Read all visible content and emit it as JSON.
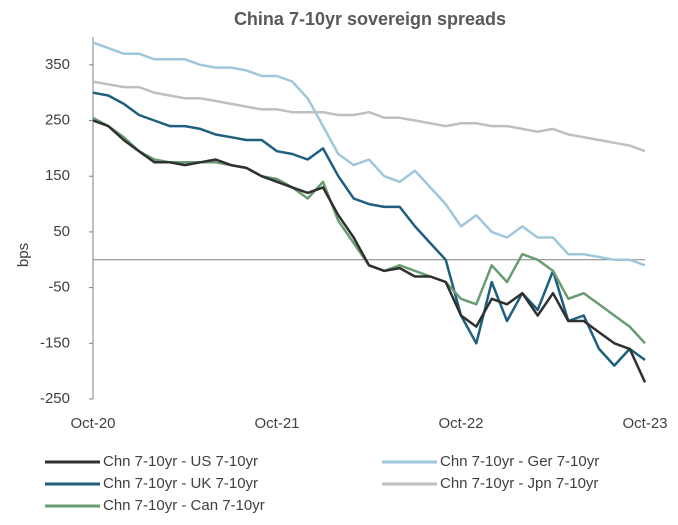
{
  "chart_data": {
    "type": "line",
    "title": "China 7-10yr sovereign spreads",
    "y_label": "bps",
    "categories": [
      "Oct-20",
      null,
      null,
      null,
      null,
      null,
      null,
      null,
      null,
      null,
      null,
      null,
      "Oct-21",
      null,
      null,
      null,
      null,
      null,
      null,
      null,
      null,
      null,
      null,
      null,
      "Oct-22",
      null,
      null,
      null,
      null,
      null,
      null,
      null,
      null,
      null,
      null,
      null,
      "Oct-23"
    ],
    "ylim": [
      -250,
      400
    ],
    "yticks": [
      -250,
      -150,
      -50,
      50,
      150,
      250,
      350
    ],
    "series": [
      {
        "name": "Chn 7-10yr - Ger 7-10yr",
        "color": "#9fc7dc",
        "values": [
          390,
          380,
          370,
          370,
          360,
          360,
          360,
          350,
          345,
          345,
          340,
          330,
          330,
          320,
          290,
          240,
          190,
          170,
          180,
          150,
          140,
          160,
          130,
          100,
          60,
          80,
          50,
          40,
          60,
          40,
          40,
          10,
          10,
          5,
          0,
          0,
          -10
        ]
      },
      {
        "name": "Chn 7-10yr - Jpn 7-10yr",
        "color": "#bfbfbf",
        "values": [
          320,
          315,
          310,
          310,
          300,
          295,
          290,
          290,
          285,
          280,
          275,
          270,
          270,
          265,
          265,
          265,
          260,
          260,
          265,
          255,
          255,
          250,
          245,
          240,
          245,
          245,
          240,
          240,
          235,
          230,
          235,
          225,
          220,
          215,
          210,
          205,
          195
        ]
      },
      {
        "name": "Chn 7-10yr - UK 7-10yr",
        "color": "#1f5e7e",
        "values": [
          300,
          295,
          280,
          260,
          250,
          240,
          240,
          235,
          225,
          220,
          215,
          215,
          195,
          190,
          180,
          200,
          150,
          110,
          100,
          95,
          95,
          60,
          30,
          0,
          -100,
          -150,
          -40,
          -110,
          -60,
          -90,
          -20,
          -110,
          -100,
          -160,
          -190,
          -160,
          -180
        ]
      },
      {
        "name": "Chn 7-10yr - Can 7-10yr",
        "color": "#6a9c72",
        "values": [
          255,
          240,
          220,
          195,
          180,
          175,
          175,
          175,
          175,
          170,
          165,
          150,
          145,
          130,
          110,
          140,
          70,
          30,
          -10,
          -20,
          -10,
          -20,
          -30,
          -40,
          -70,
          -80,
          -10,
          -40,
          10,
          0,
          -20,
          -70,
          -60,
          -80,
          -100,
          -120,
          -150
        ]
      },
      {
        "name": "Chn 7-10yr - US 7-10yr",
        "color": "#303030",
        "values": [
          250,
          240,
          215,
          195,
          175,
          175,
          170,
          175,
          180,
          170,
          165,
          150,
          140,
          130,
          120,
          130,
          80,
          40,
          -10,
          -20,
          -15,
          -30,
          -30,
          -40,
          -100,
          -120,
          -70,
          -80,
          -60,
          -100,
          -60,
          -110,
          -110,
          -130,
          -150,
          -160,
          -220
        ]
      }
    ],
    "legend_order": [
      4,
      0,
      2,
      1,
      3
    ]
  }
}
